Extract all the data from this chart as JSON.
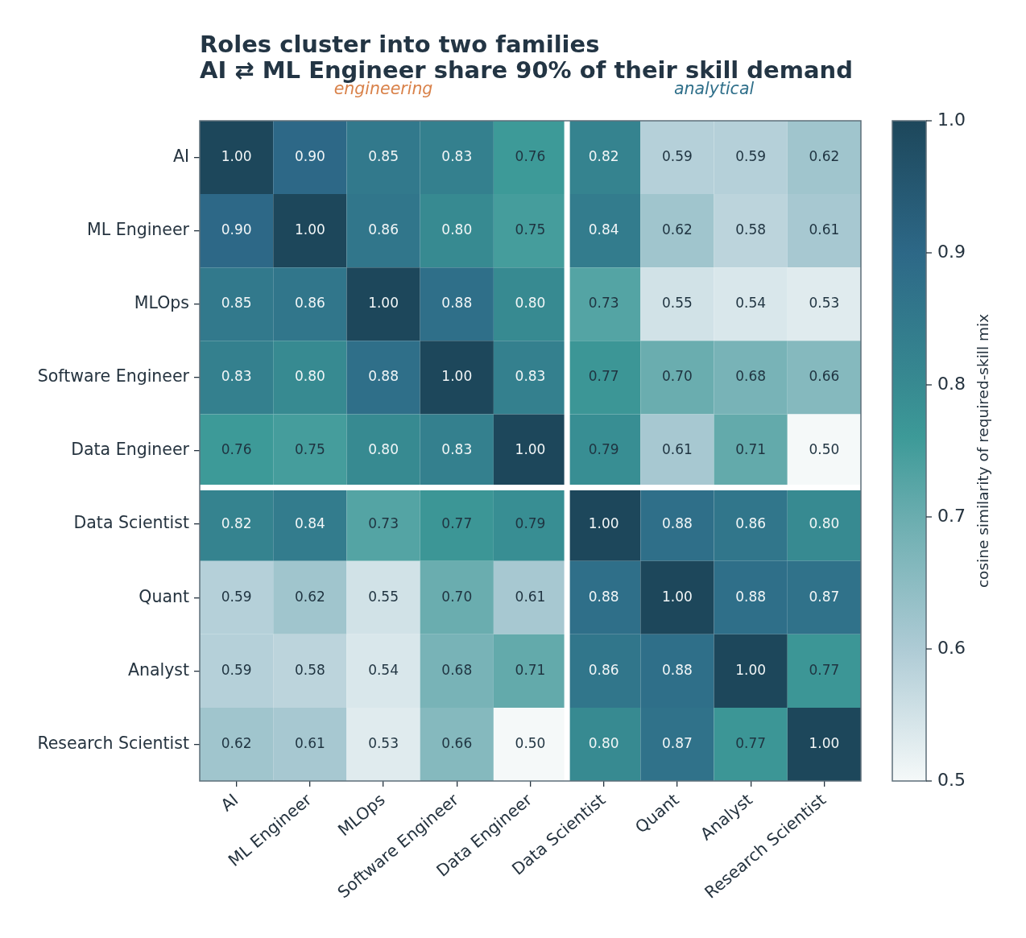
{
  "chart_data": {
    "type": "heatmap",
    "title": "Roles cluster into two families",
    "subtitle": "AI ⇄ ML Engineer share 90% of their skill demand",
    "categories": [
      "AI",
      "ML Engineer",
      "MLOps",
      "Software Engineer",
      "Data Engineer",
      "Data Scientist",
      "Quant",
      "Analyst",
      "Research Scientist"
    ],
    "y_categories": [
      "AI",
      "ML Engineer",
      "MLOps",
      "Software Engineer",
      "Data Engineer",
      "Data Scientist",
      "Quant",
      "Analyst",
      "Research Scientist"
    ],
    "cells": [
      [
        1.0,
        0.9,
        0.85,
        0.83,
        0.76,
        0.82,
        0.59,
        0.59,
        0.62
      ],
      [
        0.9,
        1.0,
        0.86,
        0.8,
        0.75,
        0.84,
        0.62,
        0.58,
        0.61
      ],
      [
        0.85,
        0.86,
        1.0,
        0.88,
        0.8,
        0.73,
        0.55,
        0.54,
        0.53
      ],
      [
        0.83,
        0.8,
        0.88,
        1.0,
        0.83,
        0.77,
        0.7,
        0.68,
        0.66
      ],
      [
        0.76,
        0.75,
        0.8,
        0.83,
        1.0,
        0.79,
        0.61,
        0.71,
        0.5
      ],
      [
        0.82,
        0.84,
        0.73,
        0.77,
        0.79,
        1.0,
        0.88,
        0.86,
        0.8
      ],
      [
        0.59,
        0.62,
        0.55,
        0.7,
        0.61,
        0.88,
        1.0,
        0.88,
        0.87
      ],
      [
        0.59,
        0.58,
        0.54,
        0.68,
        0.71,
        0.86,
        0.88,
        1.0,
        0.77
      ],
      [
        0.62,
        0.61,
        0.53,
        0.66,
        0.5,
        0.8,
        0.87,
        0.77,
        1.0
      ]
    ],
    "cell_labels": [
      [
        "1.00",
        "0.90",
        "0.85",
        "0.83",
        "0.76",
        "0.82",
        "0.59",
        "0.59",
        "0.62"
      ],
      [
        "0.90",
        "1.00",
        "0.86",
        "0.80",
        "0.75",
        "0.84",
        "0.62",
        "0.58",
        "0.61"
      ],
      [
        "0.85",
        "0.86",
        "1.00",
        "0.88",
        "0.80",
        "0.73",
        "0.55",
        "0.54",
        "0.53"
      ],
      [
        "0.83",
        "0.80",
        "0.88",
        "1.00",
        "0.83",
        "0.77",
        "0.70",
        "0.68",
        "0.66"
      ],
      [
        "0.76",
        "0.75",
        "0.80",
        "0.83",
        "1.00",
        "0.79",
        "0.61",
        "0.71",
        "0.50"
      ],
      [
        "0.82",
        "0.84",
        "0.73",
        "0.77",
        "0.79",
        "1.00",
        "0.88",
        "0.86",
        "0.80"
      ],
      [
        "0.59",
        "0.62",
        "0.55",
        "0.70",
        "0.61",
        "0.88",
        "1.00",
        "0.88",
        "0.87"
      ],
      [
        "0.59",
        "0.58",
        "0.54",
        "0.68",
        "0.71",
        "0.86",
        "0.88",
        "1.00",
        "0.77"
      ],
      [
        "0.62",
        "0.61",
        "0.53",
        "0.66",
        "0.50",
        "0.80",
        "0.87",
        "0.77",
        "1.00"
      ]
    ],
    "clim": [
      0.5,
      1.0
    ],
    "cticks": [
      0.5,
      0.6,
      0.7,
      0.8,
      0.9,
      {
        "value": 1.0,
        "label": "1.0"
      }
    ],
    "clabel": "cosine similarity of required-skill mix",
    "annotations": [
      "engineering",
      "analytical"
    ]
  }
}
